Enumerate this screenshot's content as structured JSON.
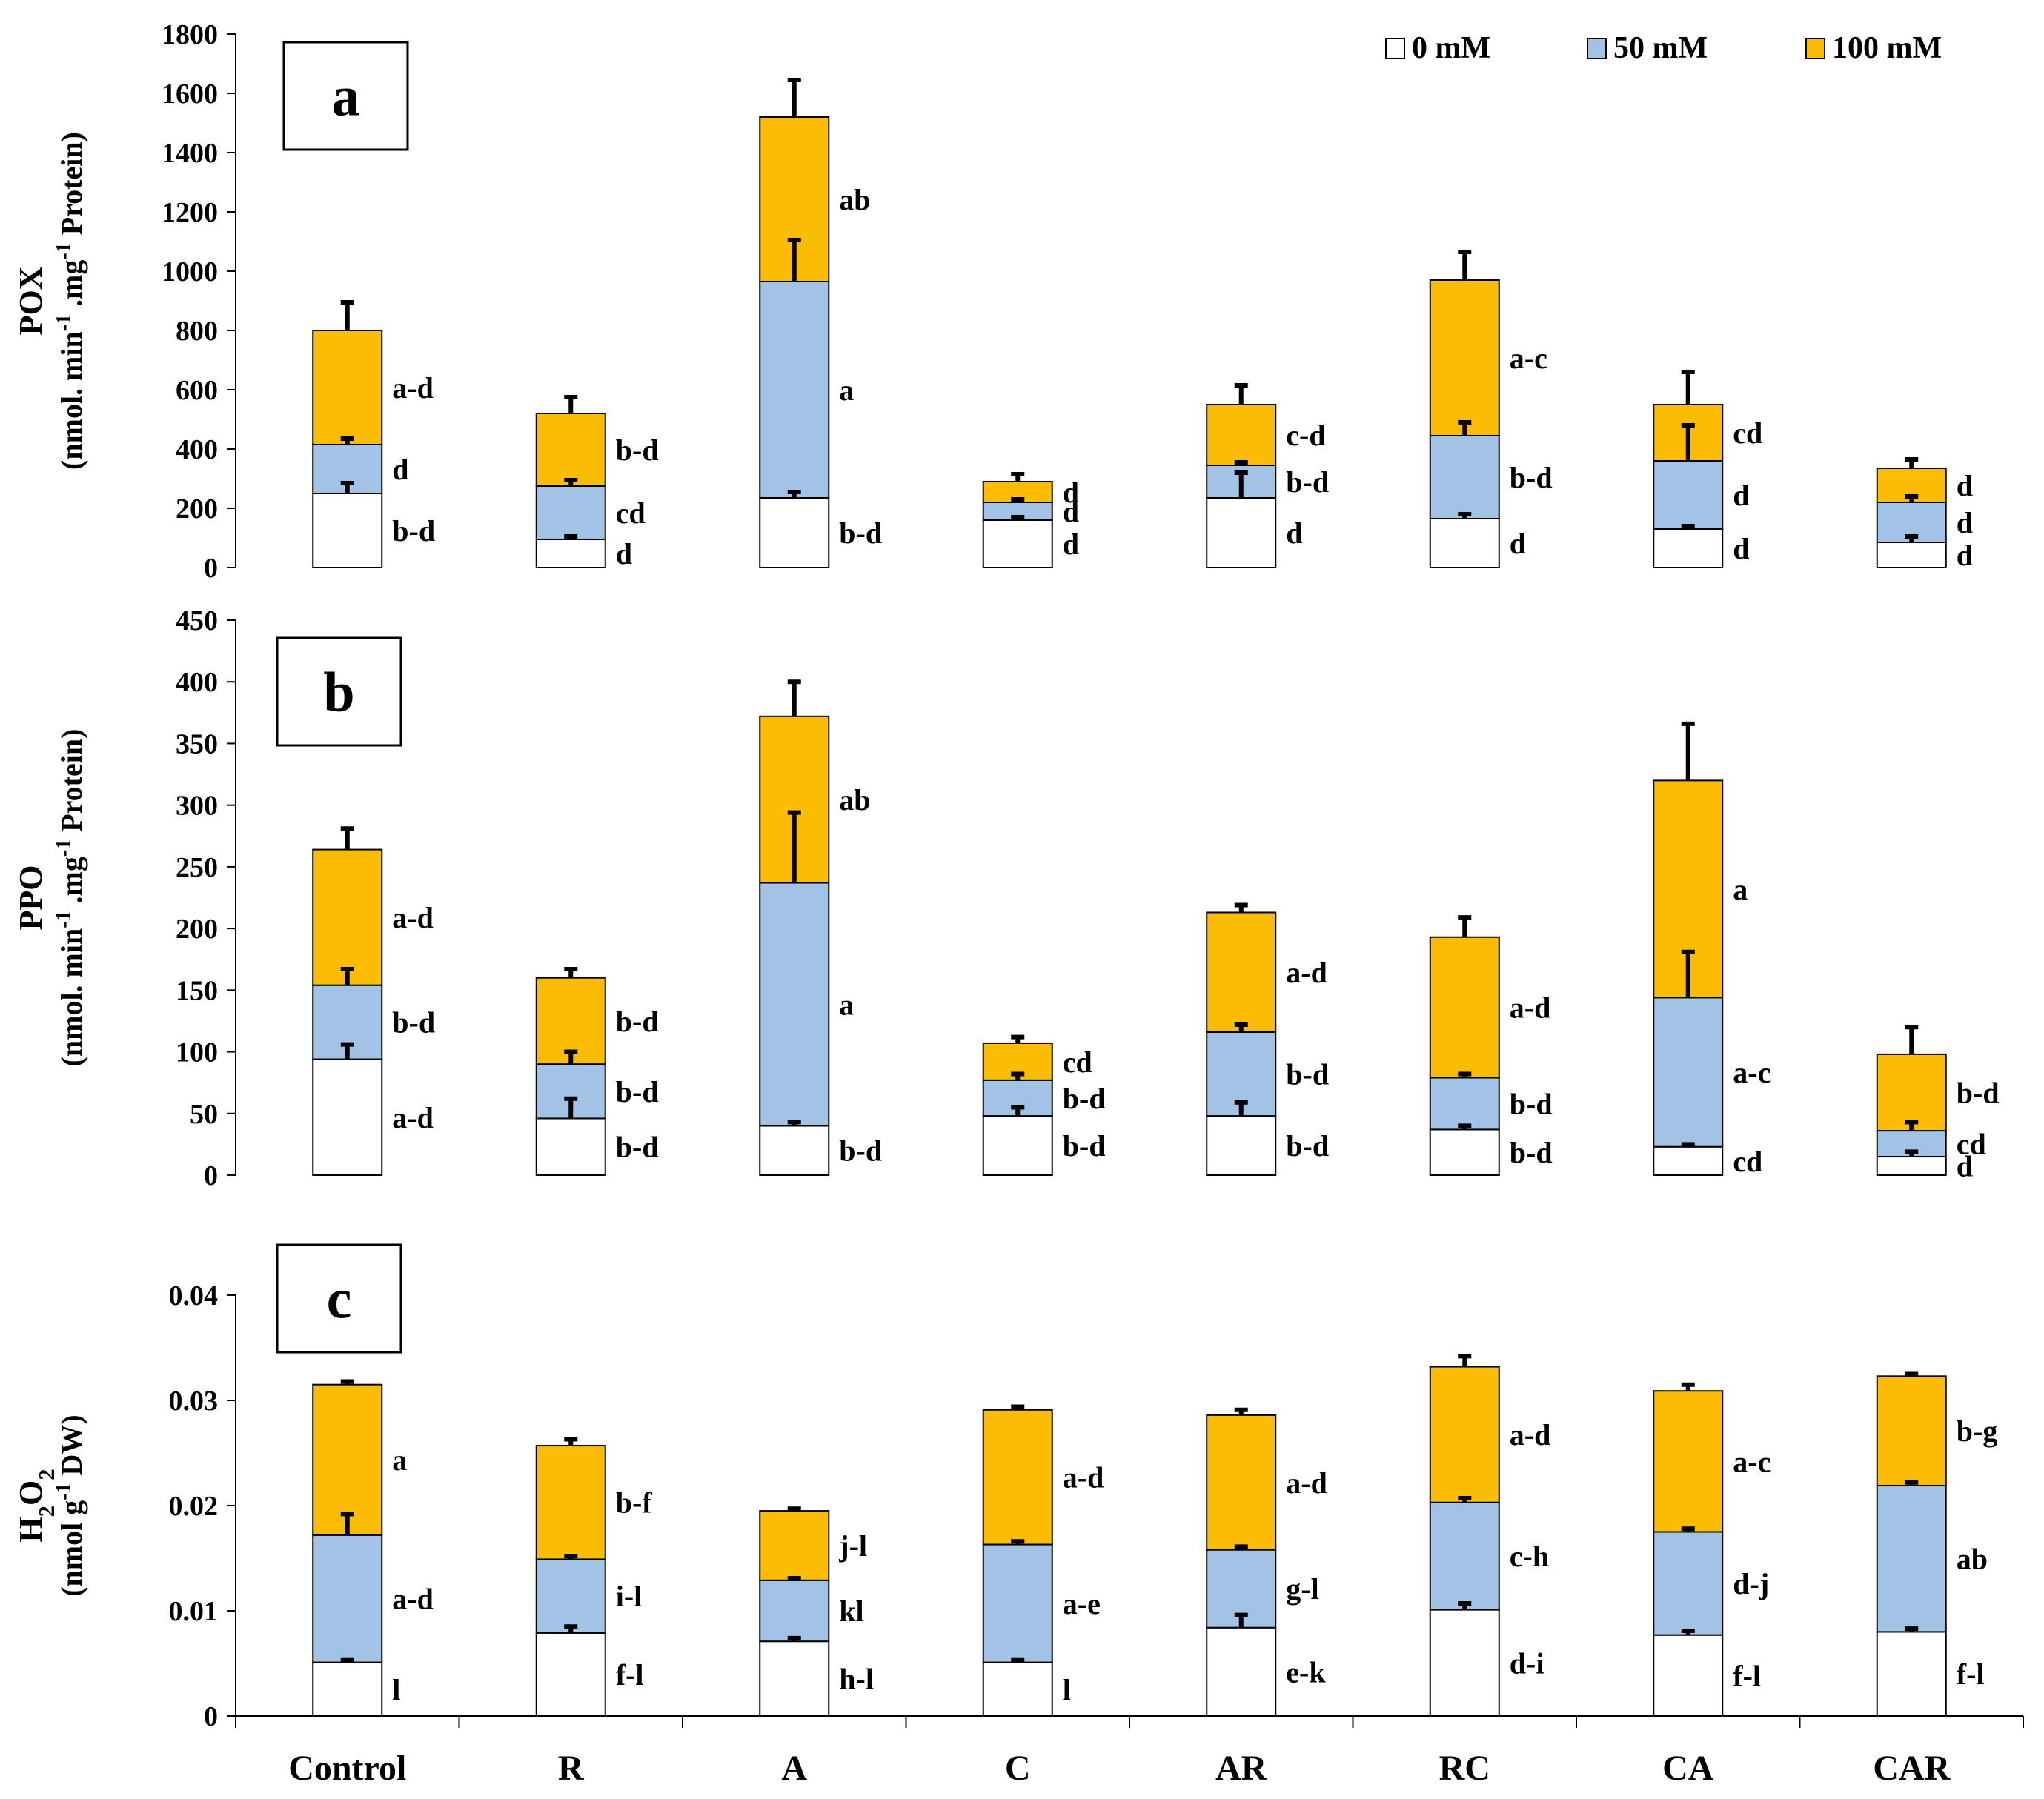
{
  "colors": {
    "mM0": "#ffffff",
    "mM50": "#a3c3e6",
    "mM100": "#fcbc04",
    "axis": "#000000"
  },
  "chart_data": {
    "type": "bar",
    "stacked": true,
    "categories": [
      "Control",
      "R",
      "A",
      "C",
      "AR",
      "RC",
      "CA",
      "CAR"
    ],
    "legend": {
      "position": "top-right",
      "entries": [
        {
          "key": "mM0",
          "label": "0 mM"
        },
        {
          "key": "mM50",
          "label": "50 mM"
        },
        {
          "key": "mM100",
          "label": "100 mM"
        }
      ]
    },
    "panels": [
      {
        "id": "a",
        "panel_label": "a",
        "ylabel_line1": "POX",
        "ylabel_line2": "(nmol. min-1 .mg-1 Protein)",
        "ylim": [
          0,
          1800
        ],
        "yticks": [
          "0",
          "200",
          "400",
          "600",
          "800",
          "1000",
          "1200",
          "1400",
          "1600",
          "1800"
        ],
        "series": [
          {
            "name": "0 mM",
            "key": "mM0",
            "values": [
              250,
              95,
              235,
              160,
              235,
              165,
              130,
              85
            ],
            "errors": [
              35,
              10,
              20,
              10,
              85,
              15,
              10,
              20
            ],
            "letters": [
              "b-d",
              "d",
              "b-d",
              "d",
              "d",
              "d",
              "d",
              "d"
            ]
          },
          {
            "name": "50 mM",
            "key": "mM50",
            "values": [
              165,
              180,
              730,
              60,
              110,
              280,
              230,
              135
            ],
            "errors": [
              20,
              20,
              140,
              10,
              10,
              45,
              120,
              20
            ],
            "letters": [
              "d",
              "cd",
              "a",
              "d",
              "b-d",
              "b-d",
              "d",
              "d"
            ]
          },
          {
            "name": "100 mM",
            "key": "mM100",
            "values": [
              385,
              245,
              555,
              70,
              205,
              525,
              190,
              115
            ],
            "errors": [
              95,
              55,
              125,
              25,
              65,
              95,
              110,
              30
            ],
            "letters": [
              "a-d",
              "b-d",
              "ab",
              "d",
              "c-d",
              "a-c",
              "cd",
              "d"
            ]
          }
        ]
      },
      {
        "id": "b",
        "panel_label": "b",
        "ylabel_line1": "PPO",
        "ylabel_line2": "(nmol. min-1 .mg-1 Protein)",
        "ylim": [
          0,
          450
        ],
        "yticks": [
          "0",
          "50",
          "100",
          "150",
          "200",
          "250",
          "300",
          "350",
          "400",
          "450"
        ],
        "series": [
          {
            "name": "0 mM",
            "key": "mM0",
            "values": [
              94,
              46,
              40,
              48,
              48,
              37,
              23,
              15
            ],
            "errors": [
              12,
              16,
              3,
              7,
              11,
              3,
              2,
              4
            ],
            "letters": [
              "a-d",
              "b-d",
              "b-d",
              "b-d",
              "b-d",
              "b-d",
              "cd",
              "d"
            ]
          },
          {
            "name": "50 mM",
            "key": "mM50",
            "values": [
              60,
              44,
              197,
              29,
              68,
              42,
              121,
              21
            ],
            "errors": [
              13,
              10,
              57,
              5,
              6,
              3,
              37,
              7
            ],
            "letters": [
              "b-d",
              "b-d",
              "a",
              "b-d",
              "b-d",
              "b-d",
              "a-c",
              "cd"
            ]
          },
          {
            "name": "100 mM",
            "key": "mM100",
            "values": [
              110,
              70,
              135,
              30,
              97,
              114,
              176,
              62
            ],
            "errors": [
              17,
              7,
              28,
              5,
              6,
              16,
              46,
              22
            ],
            "letters": [
              "a-d",
              "b-d",
              "ab",
              "cd",
              "a-d",
              "a-d",
              "a",
              "b-d"
            ]
          }
        ]
      },
      {
        "id": "c",
        "panel_label": "c",
        "ylabel_line1": "H2O2",
        "ylabel_line2": "(nmol g-1 DW)",
        "ylim": [
          0,
          0.04
        ],
        "yticks": [
          "0",
          "0.01",
          "0.02",
          "0.03",
          "0.04"
        ],
        "series": [
          {
            "name": "0 mM",
            "key": "mM0",
            "values": [
              0.0051,
              0.0079,
              0.0071,
              0.0051,
              0.0084,
              0.0101,
              0.0077,
              0.008
            ],
            "errors": [
              0.0002,
              0.0006,
              0.0003,
              0.0002,
              0.0012,
              0.0006,
              0.0004,
              0.0003
            ],
            "letters": [
              "l",
              "f-l",
              "h-l",
              "l",
              "e-k",
              "d-i",
              "f-l",
              "f-l"
            ]
          },
          {
            "name": "50 mM",
            "key": "mM50",
            "values": [
              0.0121,
              0.007,
              0.0058,
              0.0112,
              0.0074,
              0.0102,
              0.0098,
              0.0139
            ],
            "errors": [
              0.002,
              0.0003,
              0.0002,
              0.0003,
              0.0003,
              0.0004,
              0.0003,
              0.0003
            ],
            "letters": [
              "a-d",
              "i-l",
              "kl",
              "a-e",
              "g-l",
              "c-h",
              "d-j",
              "ab"
            ]
          },
          {
            "name": "100 mM",
            "key": "mM100",
            "values": [
              0.0143,
              0.0108,
              0.0066,
              0.0128,
              0.0128,
              0.0129,
              0.0134,
              0.0104
            ],
            "errors": [
              0.0003,
              0.0006,
              0.0002,
              0.0003,
              0.0005,
              0.001,
              0.0006,
              0.0002
            ],
            "letters": [
              "a",
              "b-f",
              "j-l",
              "a-d",
              "a-d",
              "a-d",
              "a-c",
              "b-g"
            ]
          }
        ]
      }
    ]
  }
}
